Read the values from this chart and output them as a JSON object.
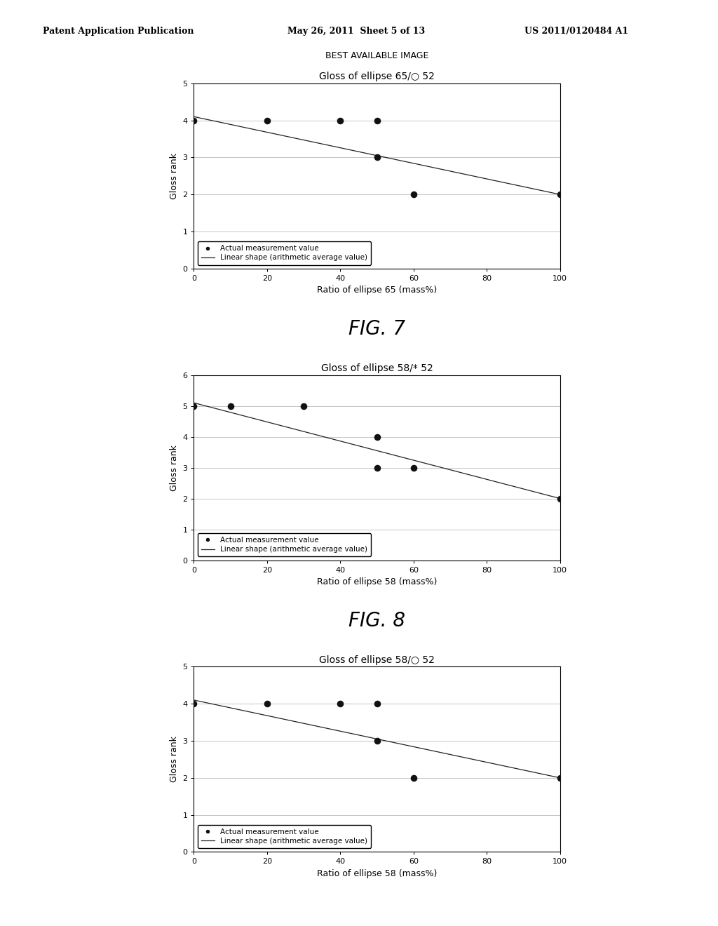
{
  "header_left": "Patent Application Publication",
  "header_mid": "May 26, 2011  Sheet 5 of 13",
  "header_right": "US 2011/0120484 A1",
  "best_available_label": "BEST AVAILABLE IMAGE",
  "charts": [
    {
      "title": "Gloss of ellipse 65/○ 52",
      "xlabel": "Ratio of ellipse 65 (mass%)",
      "ylabel": "Gloss rank",
      "ylim": [
        0,
        5
      ],
      "xlim": [
        0,
        100
      ],
      "yticks": [
        0,
        1,
        2,
        3,
        4,
        5
      ],
      "xticks": [
        0,
        20,
        40,
        60,
        80,
        100
      ],
      "scatter_x": [
        0,
        20,
        40,
        50,
        50,
        60,
        100
      ],
      "scatter_y": [
        4,
        4,
        4,
        4,
        3,
        2,
        2
      ],
      "line_x": [
        0,
        100
      ],
      "line_y": [
        4.1,
        2.0
      ],
      "fig_label": "FIG. 7"
    },
    {
      "title": "Gloss of ellipse 58/* 52",
      "xlabel": "Ratio of ellipse 58 (mass%)",
      "ylabel": "Gloss rank",
      "ylim": [
        0,
        6
      ],
      "xlim": [
        0,
        100
      ],
      "yticks": [
        0,
        1,
        2,
        3,
        4,
        5,
        6
      ],
      "xticks": [
        0,
        20,
        40,
        60,
        80,
        100
      ],
      "scatter_x": [
        0,
        10,
        30,
        50,
        50,
        60,
        100
      ],
      "scatter_y": [
        5,
        5,
        5,
        4,
        3,
        3,
        2
      ],
      "line_x": [
        0,
        100
      ],
      "line_y": [
        5.1,
        2.0
      ],
      "fig_label": "FIG. 8"
    },
    {
      "title": "Gloss of ellipse 58/○ 52",
      "xlabel": "Ratio of ellipse 58 (mass%)",
      "ylabel": "Gloss rank",
      "ylim": [
        0,
        5
      ],
      "xlim": [
        0,
        100
      ],
      "yticks": [
        0,
        1,
        2,
        3,
        4,
        5
      ],
      "xticks": [
        0,
        20,
        40,
        60,
        80,
        100
      ],
      "scatter_x": [
        0,
        20,
        40,
        50,
        50,
        60,
        100
      ],
      "scatter_y": [
        4,
        4,
        4,
        4,
        3,
        2,
        2
      ],
      "line_x": [
        0,
        100
      ],
      "line_y": [
        4.1,
        2.0
      ],
      "fig_label": ""
    }
  ],
  "legend_dot_label": "Actual measurement value",
  "legend_line_label": "Linear shape (arithmetic average value)",
  "bg_color": "#ffffff",
  "line_color": "#222222",
  "scatter_color": "#111111",
  "header_font_size": 9,
  "best_avail_font_size": 9,
  "title_font_size": 10,
  "axis_label_font_size": 9,
  "tick_font_size": 8,
  "fig_label_font_size": 20,
  "legend_font_size": 7.5
}
